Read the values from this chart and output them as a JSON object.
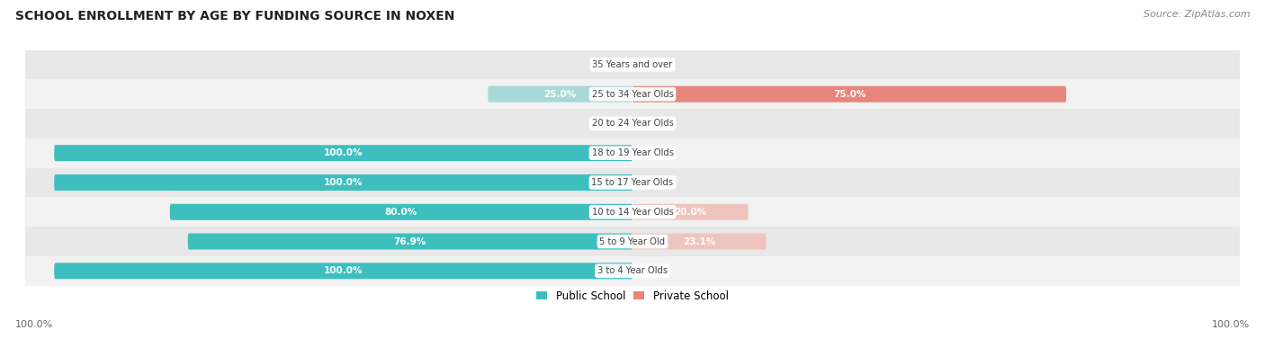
{
  "title": "SCHOOL ENROLLMENT BY AGE BY FUNDING SOURCE IN NOXEN",
  "source": "Source: ZipAtlas.com",
  "categories": [
    "3 to 4 Year Olds",
    "5 to 9 Year Old",
    "10 to 14 Year Olds",
    "15 to 17 Year Olds",
    "18 to 19 Year Olds",
    "20 to 24 Year Olds",
    "25 to 34 Year Olds",
    "35 Years and over"
  ],
  "public_values": [
    100.0,
    76.9,
    80.0,
    100.0,
    100.0,
    0.0,
    25.0,
    0.0
  ],
  "private_values": [
    0.0,
    23.1,
    20.0,
    0.0,
    0.0,
    0.0,
    75.0,
    0.0
  ],
  "public_color": "#3DBFBF",
  "private_color": "#E8857A",
  "public_color_light": "#A8D8D8",
  "private_color_light": "#F0C4BE",
  "row_bg_color_odd": "#F2F2F2",
  "row_bg_color_even": "#E8E8E8",
  "label_color_white": "#FFFFFF",
  "label_color_dark": "#444444",
  "background_color": "#FFFFFF",
  "x_left_label": "100.0%",
  "x_right_label": "100.0%",
  "legend_labels": [
    "Public School",
    "Private School"
  ]
}
